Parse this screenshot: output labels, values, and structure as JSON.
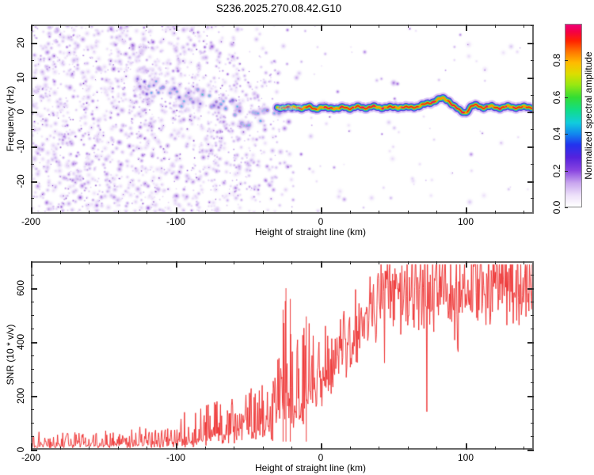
{
  "figure": {
    "title": "S236.2025.270.08.42.G10",
    "background": "#ffffff"
  },
  "chart_data": [
    {
      "type": "heatmap",
      "panel": "top",
      "description": "Radio-occultation spectrogram: purple noise speckle at low heights collapsing into a narrow rainbow-colored signal band near 0-2 Hz at higher heights",
      "xlabel": "Height of straight line (km)",
      "ylabel": "Frequency (Hz)",
      "xlim": [
        -200,
        147
      ],
      "ylim": [
        -29.5,
        25.3
      ],
      "x_major_ticks": [
        -200,
        -100,
        0,
        100
      ],
      "x_minor_ticks": [
        -180,
        -160,
        -140,
        -120,
        -80,
        -60,
        -40,
        -20,
        20,
        40,
        60,
        80,
        120,
        140
      ],
      "y_major_ticks": [
        20,
        10,
        0,
        -10,
        -20
      ],
      "y_minor_ticks": [
        25,
        15,
        5,
        -5,
        -15,
        -25
      ],
      "colorbar": {
        "label": "Normalized spectral amplitude",
        "ticks": [
          0.0,
          0.2,
          0.4,
          0.6,
          0.8
        ],
        "range": [
          0,
          1
        ],
        "stops": [
          [
            0.0,
            "#ffffff"
          ],
          [
            0.06,
            "#eee2fa"
          ],
          [
            0.13,
            "#c9a6ee"
          ],
          [
            0.2,
            "#8844e0"
          ],
          [
            0.27,
            "#5522dd"
          ],
          [
            0.34,
            "#2233ee"
          ],
          [
            0.4,
            "#1188ee"
          ],
          [
            0.46,
            "#11ccdd"
          ],
          [
            0.53,
            "#11dd88"
          ],
          [
            0.6,
            "#33dd33"
          ],
          [
            0.67,
            "#99e811"
          ],
          [
            0.73,
            "#dddd00"
          ],
          [
            0.79,
            "#ffbb00"
          ],
          [
            0.85,
            "#ff7700"
          ],
          [
            0.91,
            "#ff2200"
          ],
          [
            0.96,
            "#f40044"
          ],
          [
            1.0,
            "#ee0077"
          ]
        ]
      },
      "signal_trace": {
        "band_start_height_km": -30,
        "points": [
          [
            -128,
            8
          ],
          [
            -120,
            6.5
          ],
          [
            -113,
            7.5
          ],
          [
            -107,
            5
          ],
          [
            -101,
            5.5
          ],
          [
            -96,
            3.2
          ],
          [
            -91,
            4
          ],
          [
            -86,
            5
          ],
          [
            -81,
            2.8
          ],
          [
            -77,
            3.6
          ],
          [
            -73,
            1.2
          ],
          [
            -69,
            2.6
          ],
          [
            -65,
            0.8
          ],
          [
            -61,
            1.8
          ],
          [
            -57,
            -0.8
          ],
          [
            -53,
            -2.2
          ],
          [
            -49,
            -3.5
          ],
          [
            -46,
            -1.5
          ],
          [
            -43,
            -0.5
          ],
          [
            -40,
            -1.2
          ],
          [
            -37,
            0.6
          ],
          [
            -34,
            1
          ],
          [
            -31,
            0.8
          ],
          [
            -28,
            1.2
          ],
          [
            -24,
            1.5
          ],
          [
            -20,
            1
          ],
          [
            -16,
            1.4
          ],
          [
            -12,
            1.1
          ],
          [
            -8,
            1.4
          ],
          [
            -4,
            0.9
          ],
          [
            0,
            1.3
          ],
          [
            4,
            1
          ],
          [
            8,
            1.3
          ],
          [
            12,
            0.9
          ],
          [
            16,
            1.3
          ],
          [
            20,
            1.1
          ],
          [
            25,
            1.4
          ],
          [
            30,
            1.2
          ],
          [
            35,
            1.5
          ],
          [
            40,
            1.2
          ],
          [
            45,
            1.4
          ],
          [
            50,
            1.2
          ],
          [
            55,
            1.5
          ],
          [
            60,
            1.2
          ],
          [
            65,
            1.5
          ],
          [
            70,
            1.9
          ],
          [
            75,
            2.6
          ],
          [
            80,
            3.4
          ],
          [
            84,
            3.9
          ],
          [
            88,
            3.4
          ],
          [
            92,
            1.6
          ],
          [
            96,
            0.3
          ],
          [
            100,
            -0.2
          ],
          [
            104,
            1.6
          ],
          [
            108,
            1.9
          ],
          [
            112,
            1.3
          ],
          [
            118,
            1.5
          ],
          [
            124,
            1.2
          ],
          [
            130,
            1.5
          ],
          [
            137,
            1.3
          ],
          [
            147,
            1.4
          ]
        ]
      },
      "noise_field": {
        "palette": [
          "#efe4fb",
          "#dcc6f5",
          "#bf9dec",
          "#9c63de",
          "#7e35d2",
          "#6517b8"
        ],
        "density_keypoints": [
          [
            -200,
            1.0
          ],
          [
            -100,
            0.95
          ],
          [
            -60,
            0.55
          ],
          [
            -40,
            0.3
          ],
          [
            -15,
            0.1
          ],
          [
            20,
            0.05
          ],
          [
            147,
            0.03
          ]
        ]
      },
      "band_layers": [
        {
          "color": "#a86ee8",
          "width": 13,
          "alpha": 0.4
        },
        {
          "color": "#4a22d8",
          "width": 8.5,
          "alpha": 0.95
        },
        {
          "color": "#18b8e8",
          "width": 6.2,
          "alpha": 1
        },
        {
          "color": "#2ed857",
          "width": 4.6,
          "alpha": 1
        },
        {
          "color": "#e8e000",
          "width": 3.1,
          "alpha": 1
        },
        {
          "color": "#ff9100",
          "width": 2.2,
          "alpha": 1
        }
      ],
      "band_core_colors": {
        "red": "#ee2211",
        "magenta": "#ee0077"
      }
    },
    {
      "type": "line",
      "panel": "bottom",
      "xlabel": "Height of straight line (km)",
      "ylabel": "SNR (10 * v/v)",
      "xlim": [
        -200,
        147
      ],
      "ylim": [
        0,
        700
      ],
      "x_major_ticks": [
        -200,
        -100,
        0,
        100
      ],
      "x_minor_ticks": [
        -180,
        -160,
        -140,
        -120,
        -80,
        -60,
        -40,
        -20,
        20,
        40,
        60,
        80,
        120,
        140
      ],
      "y_major_ticks": [
        600,
        400,
        200,
        0
      ],
      "y_minor_ticks": [
        650,
        550,
        500,
        450,
        350,
        300,
        250,
        150,
        100,
        50
      ],
      "line_color": "#ee3333",
      "envelope_keypoints": [
        [
          -200,
          28,
          55
        ],
        [
          -185,
          28,
          55
        ],
        [
          -170,
          30,
          58
        ],
        [
          -155,
          30,
          60
        ],
        [
          -140,
          32,
          62
        ],
        [
          -128,
          34,
          66
        ],
        [
          -118,
          36,
          70
        ],
        [
          -110,
          40,
          80
        ],
        [
          -102,
          46,
          95
        ],
        [
          -96,
          55,
          115
        ],
        [
          -90,
          65,
          130
        ],
        [
          -84,
          72,
          140
        ],
        [
          -78,
          80,
          150
        ],
        [
          -72,
          88,
          155
        ],
        [
          -66,
          95,
          160
        ],
        [
          -60,
          105,
          170
        ],
        [
          -54,
          115,
          180
        ],
        [
          -49,
          120,
          185
        ],
        [
          -44,
          115,
          180
        ],
        [
          -40,
          110,
          175
        ],
        [
          -36,
          115,
          185
        ],
        [
          -32,
          140,
          240
        ],
        [
          -28,
          220,
          420
        ],
        [
          -24,
          250,
          430
        ],
        [
          -20,
          230,
          380
        ],
        [
          -16,
          220,
          330
        ],
        [
          -12,
          250,
          320
        ],
        [
          -8,
          280,
          300
        ],
        [
          -4,
          300,
          260
        ],
        [
          0,
          310,
          240
        ],
        [
          4,
          330,
          220
        ],
        [
          8,
          350,
          210
        ],
        [
          12,
          380,
          190
        ],
        [
          16,
          410,
          170
        ],
        [
          20,
          440,
          150
        ],
        [
          24,
          470,
          130
        ],
        [
          28,
          500,
          115
        ],
        [
          32,
          530,
          100
        ],
        [
          36,
          555,
          90
        ],
        [
          40,
          575,
          85
        ],
        [
          45,
          590,
          80
        ],
        [
          50,
          605,
          75
        ],
        [
          56,
          615,
          70
        ],
        [
          62,
          622,
          68
        ],
        [
          70,
          630,
          65
        ],
        [
          78,
          636,
          62
        ],
        [
          86,
          640,
          62
        ],
        [
          94,
          642,
          60
        ],
        [
          102,
          645,
          60
        ],
        [
          110,
          648,
          62
        ],
        [
          118,
          648,
          64
        ],
        [
          126,
          650,
          62
        ],
        [
          134,
          650,
          60
        ],
        [
          141,
          652,
          58
        ],
        [
          147,
          653,
          56
        ]
      ],
      "notable_spikes": [
        [
          -24,
          600
        ],
        [
          -21,
          560
        ],
        [
          -10,
          495
        ],
        [
          -26,
          520
        ]
      ]
    }
  ]
}
